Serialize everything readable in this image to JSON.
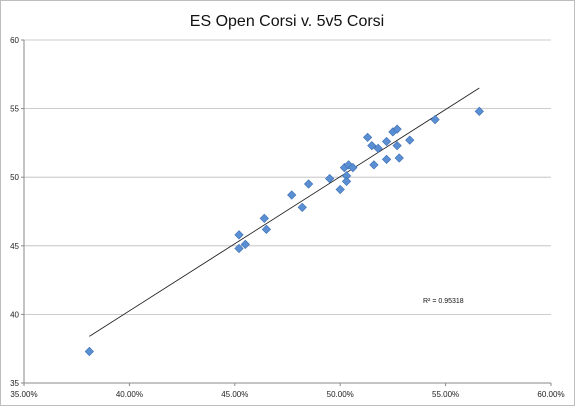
{
  "chart_data": {
    "type": "scatter",
    "title": "ES Open Corsi v. 5v5 Corsi",
    "xlabel": "",
    "ylabel": "",
    "xlim": [
      0.35,
      0.6
    ],
    "ylim": [
      35,
      60
    ],
    "x_ticks": [
      0.35,
      0.4,
      0.45,
      0.5,
      0.55,
      0.6
    ],
    "x_tick_labels": [
      "35.00%",
      "40.00%",
      "45.00%",
      "50.00%",
      "55.00%",
      "60.00%"
    ],
    "y_ticks": [
      35,
      40,
      45,
      50,
      55,
      60
    ],
    "y_tick_labels": [
      "35",
      "40",
      "45",
      "50",
      "55",
      "60"
    ],
    "grid": "horizontal",
    "legend": "none",
    "annotation": "R² = 0.95318",
    "marker": "diamond",
    "point_color": "#5b8fd4",
    "point_edge_color": "#3d6fb0",
    "trendline": {
      "type": "linear",
      "x_range": [
        0.381,
        0.566
      ],
      "y_start": 38.4,
      "y_end": 56.5,
      "color": "#222222"
    },
    "points": [
      {
        "x": 0.381,
        "y": 37.3
      },
      {
        "x": 0.452,
        "y": 45.8
      },
      {
        "x": 0.452,
        "y": 44.8
      },
      {
        "x": 0.455,
        "y": 45.1
      },
      {
        "x": 0.464,
        "y": 47.0
      },
      {
        "x": 0.465,
        "y": 46.2
      },
      {
        "x": 0.477,
        "y": 48.7
      },
      {
        "x": 0.482,
        "y": 47.8
      },
      {
        "x": 0.485,
        "y": 49.5
      },
      {
        "x": 0.495,
        "y": 49.9
      },
      {
        "x": 0.5,
        "y": 49.1
      },
      {
        "x": 0.502,
        "y": 50.7
      },
      {
        "x": 0.503,
        "y": 50.1
      },
      {
        "x": 0.503,
        "y": 49.7
      },
      {
        "x": 0.504,
        "y": 50.9
      },
      {
        "x": 0.506,
        "y": 50.7
      },
      {
        "x": 0.513,
        "y": 52.9
      },
      {
        "x": 0.515,
        "y": 52.3
      },
      {
        "x": 0.516,
        "y": 50.9
      },
      {
        "x": 0.518,
        "y": 52.1
      },
      {
        "x": 0.522,
        "y": 52.6
      },
      {
        "x": 0.522,
        "y": 51.3
      },
      {
        "x": 0.525,
        "y": 53.3
      },
      {
        "x": 0.527,
        "y": 53.5
      },
      {
        "x": 0.527,
        "y": 52.3
      },
      {
        "x": 0.528,
        "y": 51.4
      },
      {
        "x": 0.533,
        "y": 52.7
      },
      {
        "x": 0.545,
        "y": 54.2
      },
      {
        "x": 0.566,
        "y": 54.8
      }
    ]
  }
}
